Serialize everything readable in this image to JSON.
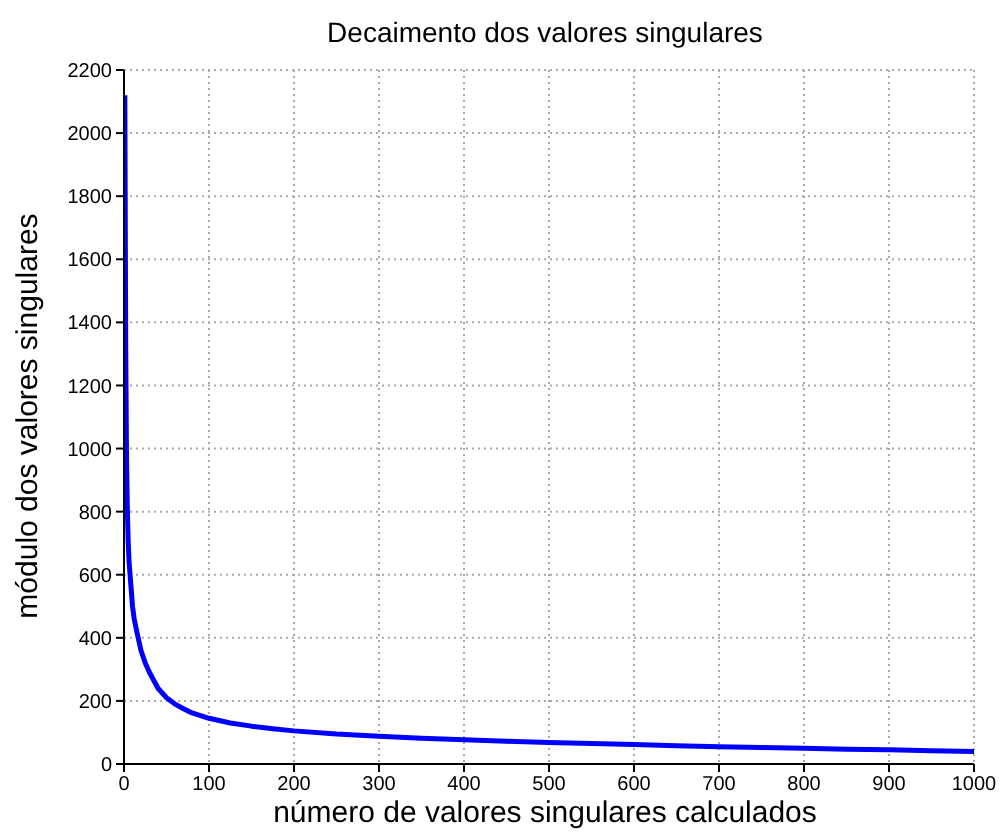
{
  "chart_data": {
    "type": "line",
    "title": "Decaimento dos valores singulares",
    "xlabel": "número de valores singulares calculados",
    "ylabel": "módulo dos valores singulares",
    "x": [
      1,
      2,
      3,
      4,
      5,
      6,
      8,
      10,
      12,
      15,
      20,
      25,
      30,
      40,
      50,
      60,
      70,
      80,
      100,
      125,
      150,
      175,
      200,
      250,
      300,
      350,
      400,
      450,
      500,
      550,
      600,
      650,
      700,
      750,
      800,
      850,
      900,
      950,
      1000
    ],
    "series": [
      {
        "color": "#0000ff",
        "values": [
          2120,
          1330,
          960,
          800,
          700,
          640,
          570,
          500,
          460,
          420,
          360,
          320,
          290,
          240,
          210,
          190,
          175,
          162,
          145,
          130,
          120,
          112,
          105,
          95,
          88,
          82,
          77,
          72,
          68,
          65,
          62,
          58,
          55,
          52,
          50,
          47,
          45,
          42,
          40
        ]
      }
    ],
    "xlim": [
      0,
      1000
    ],
    "xticks": [
      0,
      100,
      200,
      300,
      400,
      500,
      600,
      700,
      800,
      900,
      1000
    ],
    "ylim": [
      0,
      2200
    ],
    "yticks": [
      0,
      200,
      400,
      600,
      800,
      1000,
      1200,
      1400,
      1600,
      1800,
      2000,
      2200
    ],
    "grid": true,
    "legend": false,
    "marker": "none",
    "line_style": "solid"
  }
}
